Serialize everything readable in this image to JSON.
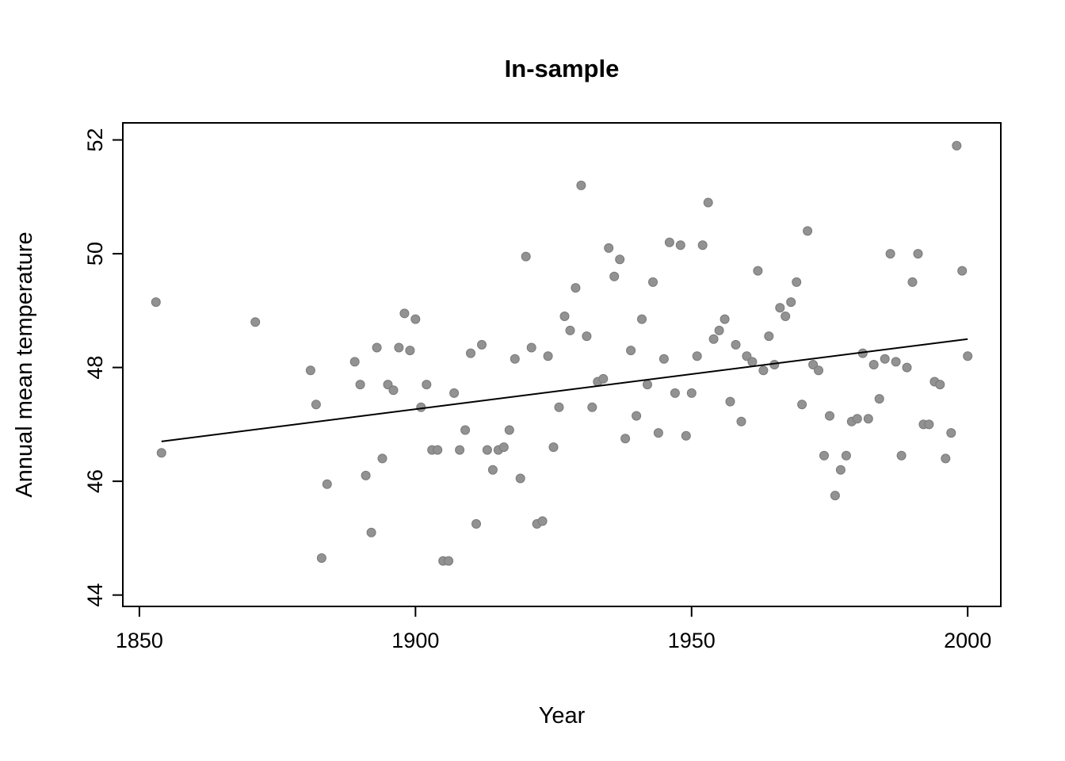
{
  "chart_data": {
    "type": "scatter",
    "title": "In-sample",
    "xlabel": "Year",
    "ylabel": "Annual mean temperature",
    "xlim": [
      1847,
      2006
    ],
    "ylim": [
      43.8,
      52.3
    ],
    "x_ticks": [
      1850,
      1900,
      1950,
      2000
    ],
    "y_ticks": [
      44,
      46,
      48,
      50,
      52
    ],
    "grid": false,
    "legend": "none",
    "point_color": "#929292",
    "point_edge_color": "#7a7a7a",
    "trend_color": "#000000",
    "series": [
      {
        "name": "annual-mean-temperature",
        "points": [
          [
            1853,
            49.15
          ],
          [
            1854,
            46.5
          ],
          [
            1871,
            48.8
          ],
          [
            1881,
            47.95
          ],
          [
            1882,
            47.35
          ],
          [
            1883,
            44.65
          ],
          [
            1884,
            45.95
          ],
          [
            1889,
            48.1
          ],
          [
            1890,
            47.7
          ],
          [
            1891,
            46.1
          ],
          [
            1892,
            45.1
          ],
          [
            1893,
            48.35
          ],
          [
            1894,
            46.4
          ],
          [
            1895,
            47.7
          ],
          [
            1896,
            47.6
          ],
          [
            1897,
            48.35
          ],
          [
            1898,
            48.95
          ],
          [
            1899,
            48.3
          ],
          [
            1900,
            48.85
          ],
          [
            1901,
            47.3
          ],
          [
            1902,
            47.7
          ],
          [
            1903,
            46.55
          ],
          [
            1904,
            46.55
          ],
          [
            1905,
            44.6
          ],
          [
            1906,
            44.6
          ],
          [
            1907,
            47.55
          ],
          [
            1908,
            46.55
          ],
          [
            1909,
            46.9
          ],
          [
            1910,
            48.25
          ],
          [
            1911,
            45.25
          ],
          [
            1912,
            48.4
          ],
          [
            1913,
            46.55
          ],
          [
            1914,
            46.2
          ],
          [
            1915,
            46.55
          ],
          [
            1916,
            46.6
          ],
          [
            1917,
            46.9
          ],
          [
            1918,
            48.15
          ],
          [
            1919,
            46.05
          ],
          [
            1920,
            49.95
          ],
          [
            1921,
            48.35
          ],
          [
            1922,
            45.25
          ],
          [
            1923,
            45.3
          ],
          [
            1924,
            48.2
          ],
          [
            1925,
            46.6
          ],
          [
            1926,
            47.3
          ],
          [
            1927,
            48.9
          ],
          [
            1928,
            48.65
          ],
          [
            1929,
            49.4
          ],
          [
            1930,
            51.2
          ],
          [
            1931,
            48.55
          ],
          [
            1932,
            47.3
          ],
          [
            1933,
            47.75
          ],
          [
            1934,
            47.8
          ],
          [
            1935,
            50.1
          ],
          [
            1936,
            49.6
          ],
          [
            1937,
            49.9
          ],
          [
            1938,
            46.75
          ],
          [
            1939,
            48.3
          ],
          [
            1940,
            47.15
          ],
          [
            1941,
            48.85
          ],
          [
            1942,
            47.7
          ],
          [
            1943,
            49.5
          ],
          [
            1944,
            46.85
          ],
          [
            1945,
            48.15
          ],
          [
            1946,
            50.2
          ],
          [
            1947,
            47.55
          ],
          [
            1948,
            50.15
          ],
          [
            1949,
            46.8
          ],
          [
            1950,
            47.55
          ],
          [
            1951,
            48.2
          ],
          [
            1952,
            50.15
          ],
          [
            1953,
            50.9
          ],
          [
            1954,
            48.5
          ],
          [
            1955,
            48.65
          ],
          [
            1956,
            48.85
          ],
          [
            1957,
            47.4
          ],
          [
            1958,
            48.4
          ],
          [
            1959,
            47.05
          ],
          [
            1960,
            48.2
          ],
          [
            1961,
            48.1
          ],
          [
            1962,
            49.7
          ],
          [
            1963,
            47.95
          ],
          [
            1964,
            48.55
          ],
          [
            1965,
            48.05
          ],
          [
            1966,
            49.05
          ],
          [
            1967,
            48.9
          ],
          [
            1968,
            49.15
          ],
          [
            1969,
            49.5
          ],
          [
            1970,
            47.35
          ],
          [
            1971,
            50.4
          ],
          [
            1972,
            48.05
          ],
          [
            1973,
            47.95
          ],
          [
            1974,
            46.45
          ],
          [
            1975,
            47.15
          ],
          [
            1976,
            45.75
          ],
          [
            1977,
            46.2
          ],
          [
            1978,
            46.45
          ],
          [
            1979,
            47.05
          ],
          [
            1980,
            47.1
          ],
          [
            1981,
            48.25
          ],
          [
            1982,
            47.1
          ],
          [
            1983,
            48.05
          ],
          [
            1984,
            47.45
          ],
          [
            1985,
            48.15
          ],
          [
            1986,
            50.0
          ],
          [
            1987,
            48.1
          ],
          [
            1988,
            46.45
          ],
          [
            1989,
            48.0
          ],
          [
            1990,
            49.5
          ],
          [
            1991,
            50.0
          ],
          [
            1992,
            47.0
          ],
          [
            1993,
            47.0
          ],
          [
            1994,
            47.75
          ],
          [
            1995,
            47.7
          ],
          [
            1996,
            46.4
          ],
          [
            1997,
            46.85
          ],
          [
            1998,
            51.9
          ],
          [
            1999,
            49.7
          ],
          [
            2000,
            48.2
          ]
        ]
      }
    ],
    "trend_line": {
      "x1": 1854,
      "y1": 46.7,
      "x2": 2000,
      "y2": 48.5
    }
  }
}
